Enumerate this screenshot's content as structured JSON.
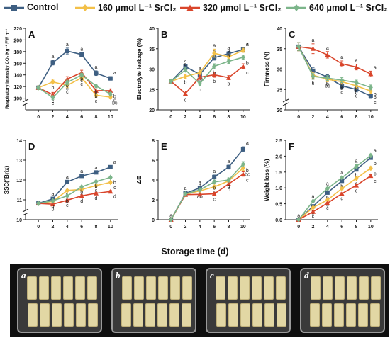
{
  "legend": [
    {
      "name": "Control",
      "color": "#3e5f82",
      "marker": "square"
    },
    {
      "name": "160 μmol L⁻¹ SrCl₂",
      "color": "#f3c048",
      "marker": "diamond"
    },
    {
      "name": "320 μmol L⁻¹ SrCl₂",
      "color": "#d9452b",
      "marker": "triangle"
    },
    {
      "name": "640 μmol L⁻¹ SrCl₂",
      "color": "#7cb58a",
      "marker": "diamond"
    }
  ],
  "x_axis_title": "Storage time (d)",
  "photo": {
    "trays": [
      "a",
      "b",
      "c",
      "d"
    ]
  },
  "chart_data": [
    {
      "panel": "A",
      "type": "line",
      "ylabel": "Respiratory intensity CO₂ Kg⁻¹ FW h⁻¹",
      "x": [
        0,
        2,
        4,
        6,
        8,
        10
      ],
      "xticks": [
        0,
        2,
        4,
        6,
        8,
        10
      ],
      "axis_break": true,
      "ylim": [
        80,
        220
      ],
      "yticks": [
        100,
        120,
        140,
        160,
        180,
        200,
        220
      ],
      "series": [
        {
          "name": "Control",
          "values": [
            118,
            161,
            181,
            175,
            143,
            134
          ],
          "err": [
            3,
            4,
            5,
            3,
            4,
            3
          ],
          "labels": [
            "",
            "a",
            "a",
            "a",
            "a",
            "a"
          ]
        },
        {
          "name": "160 μmol L⁻¹ SrCl₂",
          "values": [
            118,
            128,
            122,
            135,
            105,
            102
          ],
          "err": [
            3,
            3,
            4,
            4,
            3,
            3
          ],
          "labels": [
            "",
            "b",
            "c",
            "c",
            "c",
            "bc"
          ]
        },
        {
          "name": "320 μmol L⁻¹ SrCl₂",
          "values": [
            118,
            106,
            133,
            144,
            113,
            113
          ],
          "err": [
            3,
            4,
            4,
            4,
            3,
            3
          ],
          "labels": [
            "",
            "c",
            "b",
            "b",
            "b",
            "b"
          ]
        },
        {
          "name": "640 μmol L⁻¹ SrCl₂",
          "values": [
            118,
            101,
            127,
            140,
            121,
            107
          ],
          "err": [
            3,
            3,
            4,
            3,
            3,
            3
          ],
          "labels": [
            "",
            "c",
            "c",
            "c",
            "b",
            "c"
          ]
        }
      ]
    },
    {
      "panel": "B",
      "type": "line",
      "ylabel": "Electrolyte leakage (%)",
      "x": [
        0,
        2,
        4,
        6,
        8,
        10
      ],
      "xticks": [
        0,
        2,
        4,
        6,
        8,
        10
      ],
      "axis_break": false,
      "ylim": [
        20,
        40
      ],
      "yticks": [
        20,
        25,
        30,
        35,
        40
      ],
      "series": [
        {
          "name": "Control",
          "values": [
            27,
            30.6,
            28.7,
            32.8,
            33.8,
            34.8
          ],
          "err": [
            0.4,
            0.5,
            0.5,
            0.6,
            0.5,
            0.5
          ],
          "labels": [
            "",
            "a",
            "a",
            "a",
            "a",
            "a"
          ]
        },
        {
          "name": "160 μmol L⁻¹ SrCl₂",
          "values": [
            27,
            28.2,
            29.1,
            33.9,
            33.0,
            34.6
          ],
          "err": [
            0.4,
            0.5,
            0.5,
            1.0,
            0.5,
            0.5
          ],
          "labels": [
            "",
            "b",
            "ab",
            "a",
            "a",
            "a"
          ]
        },
        {
          "name": "320 μmol L⁻¹ SrCl₂",
          "values": [
            27,
            24.0,
            28.0,
            28.6,
            27.9,
            30.7
          ],
          "err": [
            0.4,
            0.6,
            0.5,
            0.6,
            0.5,
            0.6
          ],
          "labels": [
            "",
            "c",
            "b",
            "b",
            "b",
            "c"
          ]
        },
        {
          "name": "640 μmol L⁻¹ SrCl₂",
          "values": [
            27,
            29.8,
            26.4,
            30.7,
            31.9,
            32.9
          ],
          "err": [
            0.4,
            0.5,
            0.5,
            0.6,
            0.5,
            0.5
          ],
          "labels": [
            "",
            "a",
            "b",
            "b",
            "a",
            "b"
          ]
        }
      ]
    },
    {
      "panel": "C",
      "type": "line",
      "ylabel": "Firmness (N)",
      "x": [
        0,
        2,
        4,
        6,
        8,
        10
      ],
      "xticks": [
        0,
        2,
        4,
        6,
        8,
        10
      ],
      "axis_break": true,
      "ylim": [
        20,
        40
      ],
      "yticks": [
        20,
        25,
        30,
        35,
        40
      ],
      "series": [
        {
          "name": "Control",
          "values": [
            35.5,
            29.6,
            28.0,
            25.9,
            25.0,
            23.4
          ],
          "err": [
            1.0,
            0.8,
            0.6,
            0.6,
            0.6,
            0.6
          ],
          "labels": [
            "",
            "b",
            "b",
            "c",
            "c",
            "c"
          ]
        },
        {
          "name": "160 μmol L⁻¹ SrCl₂",
          "values": [
            35.5,
            28.5,
            27.5,
            26.9,
            25.9,
            24.6
          ],
          "err": [
            1.0,
            0.7,
            0.6,
            0.6,
            0.6,
            0.6
          ],
          "labels": [
            "",
            "c",
            "bc",
            "b",
            "b",
            "b"
          ]
        },
        {
          "name": "320 μmol L⁻¹ SrCl₂",
          "values": [
            35.5,
            35.0,
            33.5,
            31.3,
            30.5,
            28.8
          ],
          "err": [
            1.0,
            1.2,
            0.8,
            0.7,
            0.7,
            0.7
          ],
          "labels": [
            "",
            "a",
            "a",
            "a",
            "a",
            "a"
          ]
        },
        {
          "name": "640 μmol L⁻¹ SrCl₂",
          "values": [
            35.5,
            28.2,
            27.8,
            27.3,
            26.7,
            25.5
          ],
          "err": [
            1.0,
            0.7,
            0.6,
            0.6,
            0.6,
            0.6
          ],
          "labels": [
            "",
            "c",
            "c",
            "b",
            "b",
            "b"
          ]
        }
      ]
    },
    {
      "panel": "D",
      "type": "line",
      "ylabel": "SSC(°Brix)",
      "x": [
        0,
        2,
        4,
        6,
        8,
        10
      ],
      "xticks": [
        0,
        2,
        4,
        6,
        8,
        10
      ],
      "axis_break": true,
      "ylim": [
        10,
        14
      ],
      "yticks": [
        10,
        11,
        12,
        13,
        14
      ],
      "series": [
        {
          "name": "Control",
          "values": [
            10.82,
            11.05,
            11.9,
            12.2,
            12.38,
            12.65
          ],
          "err": [
            0.04,
            0.05,
            0.06,
            0.05,
            0.05,
            0.06
          ],
          "labels": [
            "",
            "a",
            "a",
            "a",
            "a",
            "a"
          ]
        },
        {
          "name": "160 μmol L⁻¹ SrCl₂",
          "values": [
            10.82,
            10.92,
            11.47,
            11.52,
            11.72,
            11.88
          ],
          "err": [
            0.04,
            0.05,
            0.05,
            0.05,
            0.05,
            0.05
          ],
          "labels": [
            "",
            "b",
            "b",
            "c",
            "c",
            "c"
          ]
        },
        {
          "name": "320 μmol L⁻¹ SrCl₂",
          "values": [
            10.82,
            10.78,
            10.98,
            11.2,
            11.33,
            11.42
          ],
          "err": [
            0.04,
            0.05,
            0.05,
            0.05,
            0.05,
            0.05
          ],
          "labels": [
            "",
            "b",
            "c",
            "d",
            "d",
            "d"
          ]
        },
        {
          "name": "640 μmol L⁻¹ SrCl₂",
          "values": [
            10.82,
            10.95,
            11.2,
            11.65,
            11.92,
            12.13
          ],
          "err": [
            0.04,
            0.05,
            0.05,
            0.05,
            0.05,
            0.05
          ],
          "labels": [
            "",
            "b",
            "b",
            "b",
            "b",
            "b"
          ]
        }
      ]
    },
    {
      "panel": "E",
      "type": "line",
      "ylabel": "ΔE",
      "x": [
        0,
        2,
        4,
        6,
        8,
        10
      ],
      "xticks": [
        0,
        2,
        4,
        6,
        8,
        10
      ],
      "axis_break": false,
      "ylim": [
        0,
        8
      ],
      "yticks": [
        0,
        2,
        4,
        6,
        8
      ],
      "series": [
        {
          "name": "Control",
          "values": [
            0,
            2.65,
            3.2,
            4.3,
            5.3,
            7.1
          ],
          "err": [
            0.05,
            0.12,
            0.15,
            0.2,
            0.2,
            0.25
          ],
          "labels": [
            "a",
            "a",
            "a",
            "a",
            "a",
            "a"
          ]
        },
        {
          "name": "160 μmol L⁻¹ SrCl₂",
          "values": [
            0,
            2.55,
            2.9,
            3.3,
            3.9,
            5.2
          ],
          "err": [
            0.05,
            0.12,
            0.15,
            0.18,
            0.2,
            0.25
          ],
          "labels": [
            "",
            "",
            "ab",
            "b",
            "b",
            "bc"
          ]
        },
        {
          "name": "320 μmol L⁻¹ SrCl₂",
          "values": [
            0,
            2.52,
            2.55,
            2.6,
            3.6,
            4.6
          ],
          "err": [
            0.05,
            0.12,
            0.12,
            0.15,
            0.18,
            0.22
          ],
          "labels": [
            "",
            "",
            "",
            "c",
            "c",
            "c"
          ]
        },
        {
          "name": "640 μmol L⁻¹ SrCl₂",
          "values": [
            0,
            2.6,
            3.0,
            3.8,
            4.0,
            5.6
          ],
          "err": [
            0.05,
            0.12,
            0.15,
            0.18,
            0.2,
            0.25
          ],
          "labels": [
            "",
            "",
            "a",
            "b",
            "b",
            "b"
          ]
        }
      ]
    },
    {
      "panel": "F",
      "type": "line",
      "ylabel": "Weight loss (%)",
      "x": [
        0,
        2,
        4,
        6,
        8,
        10
      ],
      "xticks": [
        0,
        2,
        4,
        6,
        8,
        10
      ],
      "axis_break": false,
      "ylim": [
        0,
        2.5
      ],
      "yticks": [
        0.0,
        0.5,
        1.0,
        1.5,
        2.0,
        2.5
      ],
      "series": [
        {
          "name": "Control",
          "values": [
            0,
            0.42,
            0.85,
            1.22,
            1.58,
            1.95
          ],
          "err": [
            0.01,
            0.03,
            0.04,
            0.04,
            0.05,
            0.05
          ],
          "labels": [
            "",
            "a",
            "b",
            "b",
            "b",
            "b"
          ]
        },
        {
          "name": "160 μmol L⁻¹ SrCl₂",
          "values": [
            0,
            0.38,
            0.62,
            0.98,
            1.3,
            1.62
          ],
          "err": [
            0.01,
            0.03,
            0.03,
            0.04,
            0.04,
            0.05
          ],
          "labels": [
            "",
            "b",
            "c",
            "c",
            "c",
            "c"
          ]
        },
        {
          "name": "320 μmol L⁻¹ SrCl₂",
          "values": [
            0,
            0.25,
            0.52,
            0.82,
            1.08,
            1.38
          ],
          "err": [
            0.01,
            0.02,
            0.03,
            0.03,
            0.04,
            0.04
          ],
          "labels": [
            "",
            "c",
            "c",
            "c",
            "c",
            "c"
          ]
        },
        {
          "name": "640 μmol L⁻¹ SrCl₂",
          "values": [
            0,
            0.58,
            0.98,
            1.32,
            1.68,
            2.02
          ],
          "err": [
            0.01,
            0.03,
            0.04,
            0.04,
            0.05,
            0.05
          ],
          "labels": [
            "a",
            "a",
            "a",
            "a",
            "a",
            "a"
          ]
        }
      ]
    }
  ]
}
